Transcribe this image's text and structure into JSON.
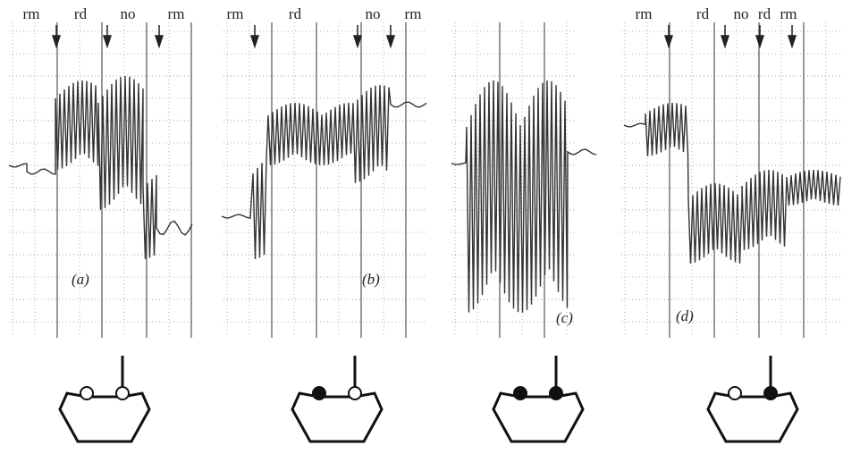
{
  "panels": [
    {
      "label": "(a)",
      "events": [
        "rm",
        "rd",
        "no",
        "rm"
      ]
    },
    {
      "label": "(b)",
      "events": [
        "rm",
        "rd",
        "no",
        "rm"
      ]
    },
    {
      "label": "(c)",
      "events": []
    },
    {
      "label": "(d)",
      "events": [
        "rm",
        "rd",
        "no",
        "rd",
        "rm"
      ]
    }
  ]
}
